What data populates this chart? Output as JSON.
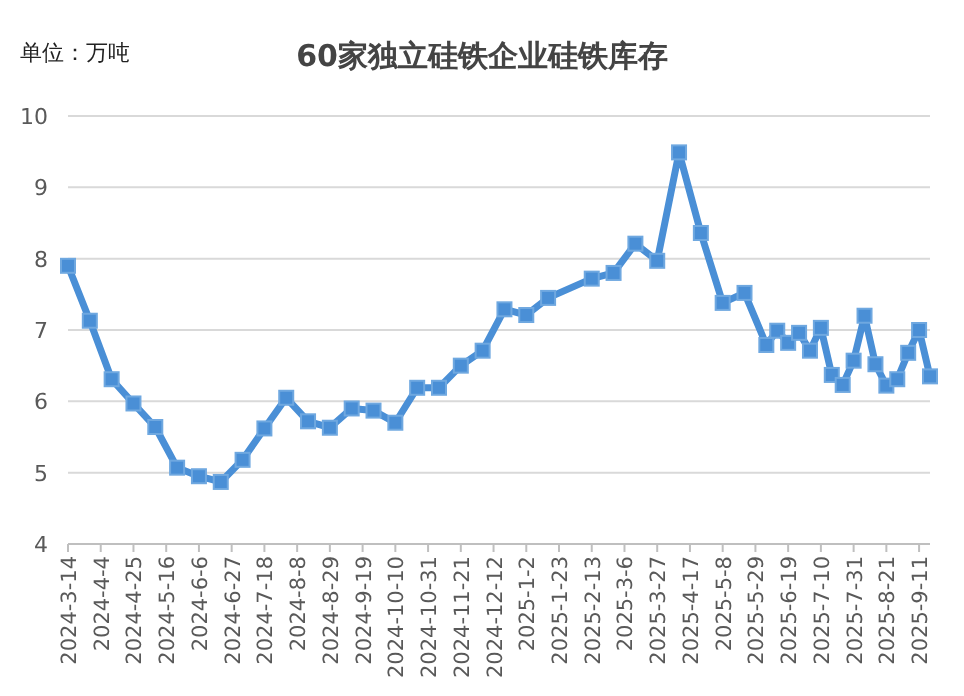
{
  "chart_data": {
    "type": "line",
    "title": "60家独立硅铁企业硅铁库存",
    "annotations": [
      "单位：万吨"
    ],
    "x": [
      "2024-03-14",
      "2024-03-28",
      "2024-04-11",
      "2024-04-25",
      "2024-05-09",
      "2024-05-23",
      "2024-06-06",
      "2024-06-20",
      "2024-07-04",
      "2024-07-18",
      "2024-08-01",
      "2024-08-15",
      "2024-08-29",
      "2024-09-12",
      "2024-09-26",
      "2024-10-10",
      "2024-10-24",
      "2024-11-07",
      "2024-11-21",
      "2024-12-05",
      "2024-12-19",
      "2025-01-02",
      "2025-01-16",
      "2025-02-13",
      "2025-02-27",
      "2025-03-13",
      "2025-03-27",
      "2025-04-10",
      "2025-04-24",
      "2025-05-08",
      "2025-05-22",
      "2025-06-05",
      "2025-06-12",
      "2025-06-19",
      "2025-06-26",
      "2025-07-03",
      "2025-07-10",
      "2025-07-17",
      "2025-07-24",
      "2025-07-31",
      "2025-08-07",
      "2025-08-14",
      "2025-08-21",
      "2025-08-28",
      "2025-09-04",
      "2025-09-11",
      "2025-09-18"
    ],
    "series": [
      {
        "color": "#4a8fd6",
        "values": [
          7.9,
          7.13,
          6.31,
          5.97,
          5.64,
          5.07,
          4.95,
          4.87,
          5.18,
          5.62,
          6.05,
          5.72,
          5.63,
          5.9,
          5.87,
          5.7,
          6.19,
          6.19,
          6.5,
          6.71,
          7.29,
          7.21,
          7.45,
          7.72,
          7.8,
          8.21,
          7.97,
          9.49,
          8.36,
          7.38,
          7.52,
          6.79,
          6.99,
          6.82,
          6.96,
          6.71,
          7.03,
          6.37,
          6.23,
          6.57,
          7.2,
          6.52,
          6.22,
          6.31,
          6.68,
          7.0,
          6.35
        ]
      }
    ],
    "xlim": [
      "2024-03-14",
      "2025-09-18"
    ],
    "xticks": [
      {
        "value": "2024-03-14",
        "label": "2024-3-14"
      },
      {
        "value": "2024-04-04",
        "label": "2024-4-4"
      },
      {
        "value": "2024-04-25",
        "label": "2024-4-25"
      },
      {
        "value": "2024-05-16",
        "label": "2024-5-16"
      },
      {
        "value": "2024-06-06",
        "label": "2024-6-6"
      },
      {
        "value": "2024-06-27",
        "label": "2024-6-27"
      },
      {
        "value": "2024-07-18",
        "label": "2024-7-18"
      },
      {
        "value": "2024-08-08",
        "label": "2024-8-8"
      },
      {
        "value": "2024-08-29",
        "label": "2024-8-29"
      },
      {
        "value": "2024-09-19",
        "label": "2024-9-19"
      },
      {
        "value": "2024-10-10",
        "label": "2024-10-10"
      },
      {
        "value": "2024-10-31",
        "label": "2024-10-31"
      },
      {
        "value": "2024-11-21",
        "label": "2024-11-21"
      },
      {
        "value": "2024-12-12",
        "label": "2024-12-12"
      },
      {
        "value": "2025-01-02",
        "label": "2025-1-2"
      },
      {
        "value": "2025-01-23",
        "label": "2025-1-23"
      },
      {
        "value": "2025-02-13",
        "label": "2025-2-13"
      },
      {
        "value": "2025-03-06",
        "label": "2025-3-6"
      },
      {
        "value": "2025-03-27",
        "label": "2025-3-27"
      },
      {
        "value": "2025-04-17",
        "label": "2025-4-17"
      },
      {
        "value": "2025-05-08",
        "label": "2025-5-8"
      },
      {
        "value": "2025-05-29",
        "label": "2025-5-29"
      },
      {
        "value": "2025-06-19",
        "label": "2025-6-19"
      },
      {
        "value": "2025-07-10",
        "label": "2025-7-10"
      },
      {
        "value": "2025-07-31",
        "label": "2025-7-31"
      },
      {
        "value": "2025-08-21",
        "label": "2025-8-21"
      },
      {
        "value": "2025-09-11",
        "label": "2025-9-11"
      }
    ],
    "ylim": [
      4,
      10
    ],
    "yticks": [
      4,
      5,
      6,
      7,
      8,
      9,
      10
    ],
    "grid": "y",
    "marker": "square",
    "line_style": "solid"
  }
}
